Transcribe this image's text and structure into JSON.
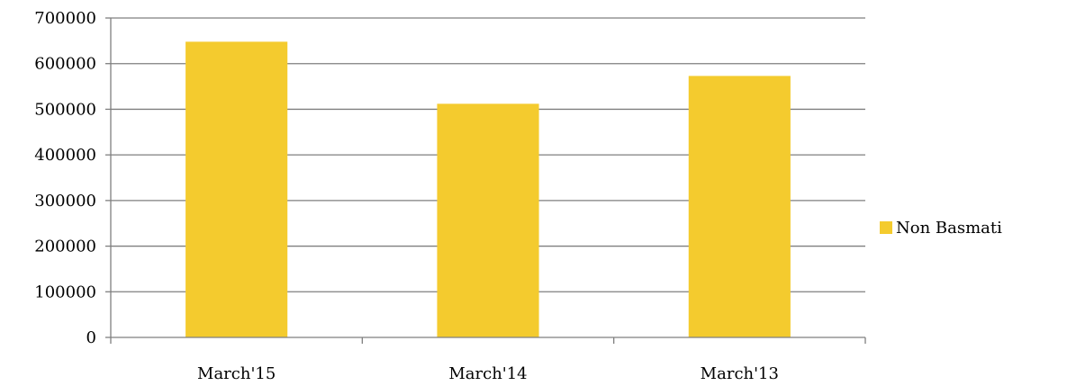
{
  "chart_data": {
    "type": "bar",
    "categories": [
      "March'15",
      "March'14",
      "March'13"
    ],
    "series": [
      {
        "name": "Non Basmati",
        "values": [
          648000,
          512000,
          573000
        ],
        "color": "#f4cb2e"
      }
    ],
    "ylim": [
      0,
      700000
    ],
    "yticks": [
      "0",
      "100000",
      "200000",
      "300000",
      "400000",
      "500000",
      "600000",
      "700000"
    ],
    "grid": true,
    "legend_position": "right",
    "axis_color": "#7f7f7f"
  }
}
